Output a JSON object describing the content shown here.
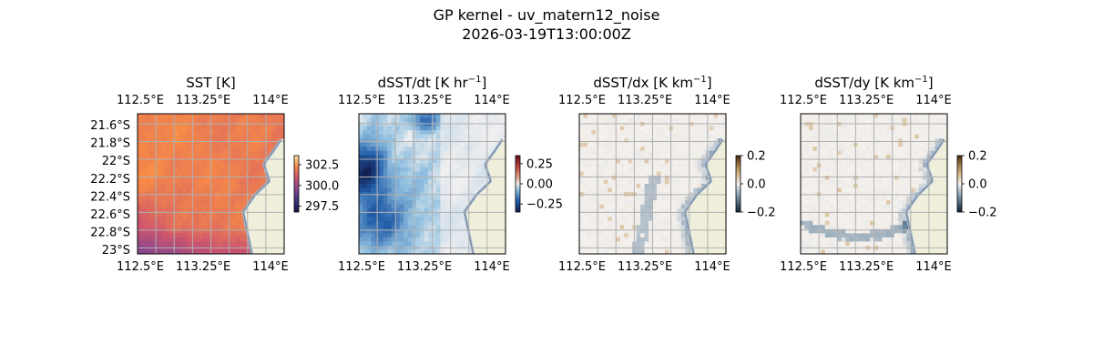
{
  "figure": {
    "title": "GP kernel - uv_matern12_noise",
    "subtitle": "2026-03-19T13:00:00Z"
  },
  "colors": {
    "land": "#efefdb",
    "ocean_edge": "#9dbbe0",
    "coast": "#808080",
    "grid": "#b0b0b0"
  },
  "chart_data": [
    {
      "type": "heatmap",
      "title_main": "SST [K]",
      "title_sup": "",
      "title_tail": "",
      "cmap": "thermal",
      "x_ticks": [
        "112.5°E",
        "113.25°E",
        "114°E"
      ],
      "y_ticks": [
        "21.6°S",
        "21.8°S",
        "22°S",
        "22.2°S",
        "22.4°S",
        "22.6°S",
        "22.8°S",
        "23°S"
      ],
      "show_y_ticks": true,
      "colorbar": {
        "ticks": [
          "302.5",
          "300.0",
          "297.5"
        ],
        "tick_values": [
          302.5,
          300.0,
          297.5
        ],
        "range": [
          296.8,
          303.6
        ]
      },
      "grid": true
    },
    {
      "type": "heatmap",
      "title_main": "dSST/dt [K hr",
      "title_sup": "−1",
      "title_tail": "]",
      "cmap": "balance",
      "x_ticks": [
        "112.5°E",
        "113.25°E",
        "114°E"
      ],
      "y_ticks": [],
      "show_y_ticks": false,
      "colorbar": {
        "ticks": [
          "0.25",
          "0.00",
          "−0.25"
        ],
        "tick_values": [
          0.25,
          0.0,
          -0.25
        ],
        "range": [
          -0.35,
          0.35
        ]
      },
      "grid": true
    },
    {
      "type": "heatmap",
      "title_main": "dSST/dx [K km",
      "title_sup": "−1",
      "title_tail": "]",
      "cmap": "diff",
      "x_ticks": [
        "112.5°E",
        "113.25°E",
        "114°E"
      ],
      "y_ticks": [],
      "show_y_ticks": false,
      "colorbar": {
        "ticks": [
          "0.2",
          "0.0",
          "−0.2"
        ],
        "tick_values": [
          0.2,
          0.0,
          -0.2
        ],
        "range": [
          -0.2,
          0.2
        ]
      },
      "grid": true
    },
    {
      "type": "heatmap",
      "title_main": "dSST/dy [K km",
      "title_sup": "−1",
      "title_tail": "]",
      "cmap": "diff",
      "x_ticks": [
        "112.5°E",
        "113.25°E",
        "114°E"
      ],
      "y_ticks": [],
      "show_y_ticks": false,
      "colorbar": {
        "ticks": [
          "0.2",
          "0.0",
          "−0.2"
        ],
        "tick_values": [
          0.2,
          0.0,
          -0.2
        ],
        "range": [
          -0.2,
          0.2
        ]
      },
      "grid": true
    }
  ]
}
